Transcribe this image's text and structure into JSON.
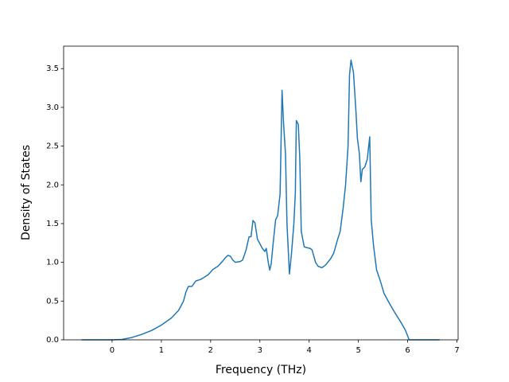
{
  "chart_data": {
    "type": "line",
    "xlabel": "Frequency (THz)",
    "ylabel": "Density of States",
    "xlim": [
      -0.984,
      7.024
    ],
    "ylim": [
      0,
      3.79
    ],
    "xticks": [
      0,
      1,
      2,
      3,
      4,
      5,
      6,
      7
    ],
    "yticks": [
      {
        "value": 0,
        "label": "0.0"
      },
      0.5,
      {
        "value": 1,
        "label": "1.0"
      },
      1.5,
      {
        "value": 2,
        "label": "2.0"
      },
      2.5,
      {
        "value": 3,
        "label": "3.0"
      },
      3.5
    ],
    "series": [
      {
        "name": "DOS",
        "color": "#1f77b4",
        "x": [
          -0.62,
          0,
          0.2,
          0.4,
          0.6,
          0.8,
          1.0,
          1.2,
          1.35,
          1.45,
          1.5,
          1.55,
          1.62,
          1.7,
          1.8,
          1.95,
          2.05,
          2.15,
          2.25,
          2.3,
          2.35,
          2.4,
          2.45,
          2.5,
          2.6,
          2.65,
          2.72,
          2.78,
          2.82,
          2.86,
          2.9,
          2.95,
          3.0,
          3.05,
          3.1,
          3.13,
          3.17,
          3.2,
          3.23,
          3.27,
          3.32,
          3.36,
          3.41,
          3.45,
          3.48,
          3.52,
          3.55,
          3.6,
          3.64,
          3.69,
          3.72,
          3.74,
          3.78,
          3.81,
          3.84,
          3.9,
          3.95,
          4.02,
          4.06,
          4.13,
          4.18,
          4.26,
          4.34,
          4.44,
          4.5,
          4.58,
          4.63,
          4.69,
          4.74,
          4.79,
          4.82,
          4.85,
          4.9,
          4.95,
          4.98,
          5.02,
          5.05,
          5.08,
          5.13,
          5.18,
          5.23,
          5.26,
          5.31,
          5.37,
          5.44,
          5.52,
          5.63,
          5.74,
          5.85,
          5.95,
          6.0,
          6.03,
          6.65
        ],
        "values": [
          0,
          0,
          0.005,
          0.03,
          0.07,
          0.12,
          0.19,
          0.28,
          0.38,
          0.5,
          0.62,
          0.69,
          0.69,
          0.76,
          0.78,
          0.84,
          0.91,
          0.95,
          1.02,
          1.06,
          1.09,
          1.08,
          1.03,
          1.0,
          1.01,
          1.03,
          1.16,
          1.33,
          1.33,
          1.54,
          1.51,
          1.3,
          1.24,
          1.18,
          1.14,
          1.18,
          1.0,
          0.9,
          0.98,
          1.25,
          1.55,
          1.6,
          1.88,
          3.22,
          2.8,
          2.4,
          1.5,
          0.85,
          1.1,
          1.5,
          1.9,
          2.83,
          2.78,
          2.35,
          1.4,
          1.2,
          1.19,
          1.18,
          1.16,
          1.0,
          0.95,
          0.93,
          0.97,
          1.05,
          1.12,
          1.3,
          1.4,
          1.7,
          2.0,
          2.5,
          3.42,
          3.61,
          3.45,
          2.95,
          2.6,
          2.4,
          2.04,
          2.2,
          2.23,
          2.33,
          2.62,
          1.55,
          1.2,
          0.9,
          0.77,
          0.6,
          0.47,
          0.35,
          0.24,
          0.13,
          0.05,
          0,
          0
        ]
      }
    ]
  }
}
